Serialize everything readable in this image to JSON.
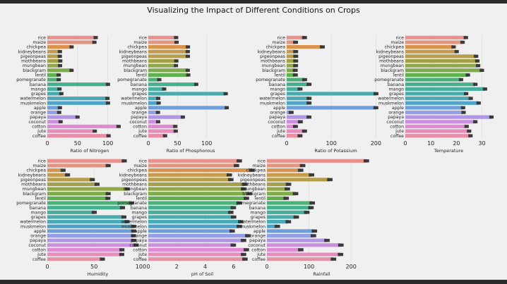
{
  "figure_title": "Visualizing the Impact of Different Conditions on Crops",
  "chart_data": [
    {
      "type": "bar",
      "orientation": "horizontal",
      "xlabel": "Ratio of Nitrogen",
      "xlim": [
        0,
        140
      ],
      "xticks": [
        0,
        50,
        100
      ],
      "categories": [
        "rice",
        "maize",
        "chickpea",
        "kidneybeans",
        "pigeonpeas",
        "mothbeans",
        "mungbean",
        "blackgram",
        "lentil",
        "pomegranate",
        "banana",
        "mango",
        "grapes",
        "watermelon",
        "muskmelon",
        "apple",
        "orange",
        "papaya",
        "coconut",
        "cotton",
        "jute",
        "coffee"
      ],
      "values": [
        79.9,
        77.8,
        40.1,
        20.8,
        20.7,
        21.4,
        21.0,
        40.0,
        18.8,
        18.9,
        100.2,
        20.1,
        23.2,
        99.4,
        100.3,
        20.8,
        19.6,
        49.9,
        21.9,
        117.8,
        78.4,
        101.2
      ]
    },
    {
      "type": "bar",
      "orientation": "horizontal",
      "xlabel": "Ratio of Phosphorous",
      "xlim": [
        0,
        145
      ],
      "xticks": [
        0,
        50,
        100
      ],
      "categories": [
        "rice",
        "maize",
        "chickpea",
        "kidneybeans",
        "pigeonpeas",
        "mothbeans",
        "mungbean",
        "blackgram",
        "lentil",
        "pomegranate",
        "banana",
        "mango",
        "grapes",
        "watermelon",
        "muskmelon",
        "apple",
        "orange",
        "papaya",
        "coconut",
        "cotton",
        "jute",
        "coffee"
      ],
      "values": [
        47.6,
        48.4,
        67.8,
        67.5,
        67.7,
        48.0,
        47.3,
        67.5,
        68.4,
        18.8,
        82.0,
        27.2,
        132.5,
        17.0,
        17.7,
        134.2,
        16.6,
        59.1,
        16.9,
        46.2,
        46.9,
        28.7
      ]
    },
    {
      "type": "bar",
      "orientation": "horizontal",
      "xlabel": "Ratio of Potassium",
      "xlim": [
        0,
        220
      ],
      "xticks": [
        0,
        100,
        200
      ],
      "categories": [
        "rice",
        "maize",
        "chickpea",
        "kidneybeans",
        "pigeonpeas",
        "mothbeans",
        "mungbean",
        "blackgram",
        "lentil",
        "pomegranate",
        "banana",
        "mango",
        "grapes",
        "watermelon",
        "muskmelon",
        "apple",
        "orange",
        "papaya",
        "coconut",
        "cotton",
        "jute",
        "coffee"
      ],
      "values": [
        39.9,
        19.8,
        79.9,
        20.1,
        20.3,
        20.2,
        19.9,
        19.2,
        19.4,
        40.2,
        50.1,
        29.9,
        200.1,
        50.2,
        50.1,
        199.9,
        10.0,
        50.0,
        30.6,
        19.6,
        39.99,
        29.9
      ]
    },
    {
      "type": "bar",
      "orientation": "horizontal",
      "xlabel": "Temperature",
      "xlim": [
        0,
        34
      ],
      "xticks": [
        0,
        10,
        20,
        30
      ],
      "categories": [
        "rice",
        "maize",
        "chickpea",
        "kidneybeans",
        "pigeonpeas",
        "mothbeans",
        "mungbean",
        "blackgram",
        "lentil",
        "pomegranate",
        "banana",
        "mango",
        "grapes",
        "watermelon",
        "muskmelon",
        "apple",
        "orange",
        "papaya",
        "coconut",
        "cotton",
        "jute",
        "coffee"
      ],
      "values": [
        23.7,
        22.4,
        18.9,
        20.1,
        27.7,
        28.2,
        28.5,
        29.97,
        24.5,
        21.8,
        27.4,
        31.2,
        23.8,
        25.6,
        28.7,
        22.6,
        22.8,
        33.7,
        27.4,
        24.0,
        24.96,
        25.5
      ]
    },
    {
      "type": "bar",
      "orientation": "horizontal",
      "xlabel": "Humidity",
      "xlim": [
        0,
        108
      ],
      "xticks": [
        0,
        50,
        100
      ],
      "categories": [
        "rice",
        "maize",
        "chickpea",
        "kidneybeans",
        "pigeonpeas",
        "mothbeans",
        "mungbean",
        "blackgram",
        "lentil",
        "pomegranate",
        "banana",
        "mango",
        "grapes",
        "watermelon",
        "muskmelon",
        "apple",
        "orange",
        "papaya",
        "coconut",
        "cotton",
        "jute",
        "coffee"
      ],
      "values": [
        82.3,
        65.1,
        16.9,
        21.6,
        48.1,
        53.2,
        85.5,
        65.1,
        64.8,
        90.1,
        80.4,
        50.2,
        81.9,
        85.2,
        92.3,
        92.3,
        92.2,
        92.4,
        94.8,
        79.8,
        79.6,
        58.9
      ]
    },
    {
      "type": "bar",
      "orientation": "horizontal",
      "xlabel": "pH of Soil",
      "xlim": [
        0,
        7.6
      ],
      "xticks": [
        0,
        2,
        4,
        6
      ],
      "categories": [
        "rice",
        "maize",
        "chickpea",
        "kidneybeans",
        "pigeonpeas",
        "mothbeans",
        "mungbean",
        "blackgram",
        "lentil",
        "pomegranate",
        "banana",
        "mango",
        "grapes",
        "watermelon",
        "muskmelon",
        "apple",
        "orange",
        "papaya",
        "coconut",
        "cotton",
        "jute",
        "coffee"
      ],
      "values": [
        6.4,
        6.2,
        7.3,
        5.7,
        5.8,
        6.8,
        6.7,
        7.1,
        6.9,
        6.4,
        5.98,
        5.8,
        6.0,
        6.5,
        6.4,
        5.9,
        7.0,
        6.7,
        5.98,
        6.9,
        6.7,
        6.8
      ]
    },
    {
      "type": "bar",
      "orientation": "horizontal",
      "xlabel": "Rainfall",
      "xlim": [
        0,
        260
      ],
      "xticks": [
        0,
        100,
        200
      ],
      "categories": [
        "rice",
        "maize",
        "chickpea",
        "kidneybeans",
        "pigeonpeas",
        "mothbeans",
        "mungbean",
        "blackgram",
        "lentil",
        "pomegranate",
        "banana",
        "mango",
        "grapes",
        "watermelon",
        "muskmelon",
        "apple",
        "orange",
        "papaya",
        "coconut",
        "cotton",
        "jute",
        "coffee"
      ],
      "values": [
        236.2,
        84.8,
        80.1,
        105.9,
        149.5,
        51.2,
        48.4,
        67.9,
        45.7,
        107.5,
        104.6,
        94.7,
        69.6,
        50.8,
        24.7,
        112.7,
        110.5,
        142.6,
        175.7,
        80.4,
        174.8,
        158.1
      ]
    }
  ],
  "palette": [
    "#e8908b",
    "#e29580",
    "#d9934f",
    "#c69b4d",
    "#b69e4a",
    "#a3a24a",
    "#91a84a",
    "#7fac4b",
    "#5fb150",
    "#4cb178",
    "#47b08f",
    "#47ae9e",
    "#49acac",
    "#4ca9b8",
    "#4ea3c8",
    "#6f9fdb",
    "#969fe6",
    "#b196e6",
    "#cc8fe0",
    "#e18ad3",
    "#e68ebb",
    "#e88fa6"
  ],
  "error_color": "#3a3a3a"
}
